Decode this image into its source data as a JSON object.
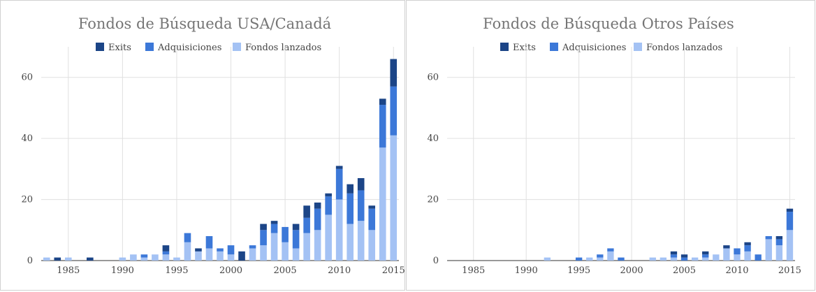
{
  "chart_data": [
    {
      "type": "bar",
      "stacked": true,
      "title": "Fondos de Búsqueda USA/Canadá",
      "legend": {
        "position": "top",
        "entries": [
          "Exits",
          "Adquisiciones",
          "Fondos lanzados"
        ]
      },
      "x": [
        1983,
        1984,
        1985,
        1986,
        1987,
        1988,
        1989,
        1990,
        1991,
        1992,
        1993,
        1994,
        1995,
        1996,
        1997,
        1998,
        1999,
        2000,
        2001,
        2002,
        2003,
        2004,
        2005,
        2006,
        2007,
        2008,
        2009,
        2010,
        2011,
        2012,
        2013,
        2014,
        2015
      ],
      "x_ticks": [
        1985,
        1990,
        1995,
        2000,
        2005,
        2010,
        2015
      ],
      "y_ticks": [
        0,
        20,
        40,
        60
      ],
      "ylim": [
        0,
        70
      ],
      "grid": true,
      "series": [
        {
          "name": "Fondos lanzados",
          "color": "#a4c2f4",
          "values": [
            1,
            0,
            1,
            0,
            0,
            0,
            0,
            1,
            2,
            1,
            2,
            2,
            1,
            6,
            3,
            4,
            3,
            2,
            0,
            4,
            5,
            9,
            6,
            4,
            9,
            10,
            15,
            20,
            12,
            13,
            10,
            37,
            41
          ]
        },
        {
          "name": "Adquisiciones",
          "color": "#3c78d8",
          "values": [
            0,
            0,
            0,
            0,
            0,
            0,
            0,
            0,
            0,
            1,
            0,
            1,
            0,
            3,
            0,
            4,
            1,
            3,
            0,
            1,
            5,
            3,
            5,
            6,
            5,
            7,
            6,
            10,
            10,
            10,
            7,
            14,
            16
          ]
        },
        {
          "name": "Exits",
          "color": "#1c4587",
          "values": [
            0,
            1,
            0,
            0,
            1,
            0,
            0,
            0,
            0,
            0,
            0,
            2,
            0,
            0,
            1,
            0,
            0,
            0,
            3,
            0,
            2,
            1,
            0,
            2,
            4,
            2,
            1,
            1,
            3,
            4,
            1,
            2,
            9
          ]
        }
      ]
    },
    {
      "type": "bar",
      "stacked": true,
      "title": "Fondos de Búsqueda Otros Países",
      "legend": {
        "position": "top",
        "entries": [
          "Exits",
          "Adquisiciones",
          "Fondos lanzados"
        ]
      },
      "x": [
        1983,
        1984,
        1985,
        1986,
        1987,
        1988,
        1989,
        1990,
        1991,
        1992,
        1993,
        1994,
        1995,
        1996,
        1997,
        1998,
        1999,
        2000,
        2001,
        2002,
        2003,
        2004,
        2005,
        2006,
        2007,
        2008,
        2009,
        2010,
        2011,
        2012,
        2013,
        2014,
        2015
      ],
      "x_ticks": [
        1985,
        1990,
        1995,
        2000,
        2005,
        2010,
        2015
      ],
      "y_ticks": [
        0,
        20,
        40,
        60
      ],
      "ylim": [
        0,
        70
      ],
      "grid": true,
      "series": [
        {
          "name": "Fondos lanzados",
          "color": "#a4c2f4",
          "values": [
            0,
            0,
            0,
            0,
            0,
            0,
            0,
            0,
            0,
            1,
            0,
            0,
            0,
            1,
            1,
            3,
            0,
            0,
            0,
            1,
            1,
            1,
            0,
            1,
            1,
            2,
            4,
            2,
            3,
            0,
            7,
            5,
            10
          ]
        },
        {
          "name": "Adquisiciones",
          "color": "#3c78d8",
          "values": [
            0,
            0,
            0,
            0,
            0,
            0,
            0,
            0,
            0,
            0,
            0,
            0,
            1,
            0,
            1,
            1,
            1,
            0,
            0,
            0,
            0,
            1,
            1,
            0,
            1,
            0,
            0,
            2,
            2,
            2,
            1,
            2,
            6
          ]
        },
        {
          "name": "Exits",
          "color": "#1c4587",
          "values": [
            0,
            0,
            0,
            0,
            0,
            0,
            0,
            0,
            0,
            0,
            0,
            0,
            0,
            0,
            0,
            0,
            0,
            0,
            0,
            0,
            0,
            1,
            1,
            0,
            1,
            0,
            1,
            0,
            1,
            0,
            0,
            1,
            1
          ]
        }
      ]
    }
  ]
}
